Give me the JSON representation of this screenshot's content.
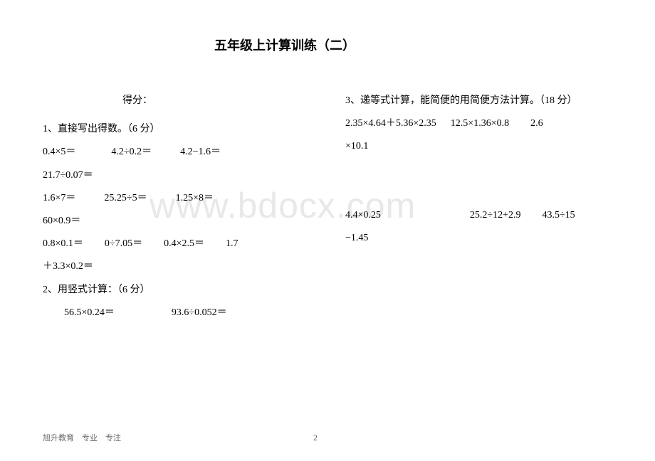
{
  "title": "五年级上计算训练（二）",
  "watermark": "www.bdocx.com",
  "score_label": "得分：",
  "section1": {
    "heading": "1、直接写出得数。（6 分）",
    "row1": {
      "a": "0.4×5＝",
      "b": "4.2÷0.2＝",
      "c": "4.2−1.6＝"
    },
    "row2": {
      "a": "21.7÷0.07＝"
    },
    "row3": {
      "a": "1.6×7＝",
      "b": "25.25÷5＝",
      "c": "1.25×8＝"
    },
    "row4": {
      "a": "60×0.9＝"
    },
    "row5": {
      "a": "0.8×0.1＝",
      "b": "0÷7.05＝",
      "c": "0.4×2.5＝",
      "d": "1.7"
    },
    "row6": {
      "a": "＋3.3×0.2＝"
    }
  },
  "section2": {
    "heading": "2、用竖式计算：（6 分）",
    "row1": {
      "a": "56.5×0.24＝",
      "b": "93.6÷0.052＝"
    }
  },
  "section3": {
    "heading": "3、递等式计算，能简便的用简便方法计算。（18 分）",
    "row1": {
      "a": "2.35×4.64＋5.36×2.35",
      "b": "12.5×1.36×0.8",
      "c": "2.6"
    },
    "row2": {
      "a": "×10.1"
    },
    "row3": {
      "a": "4.4×0.25",
      "b": "25.2÷12+2.9",
      "c": "43.5÷15"
    },
    "row4": {
      "a": "−1.45"
    }
  },
  "footer": "旭升教育　专业　专注",
  "page_number": "2"
}
